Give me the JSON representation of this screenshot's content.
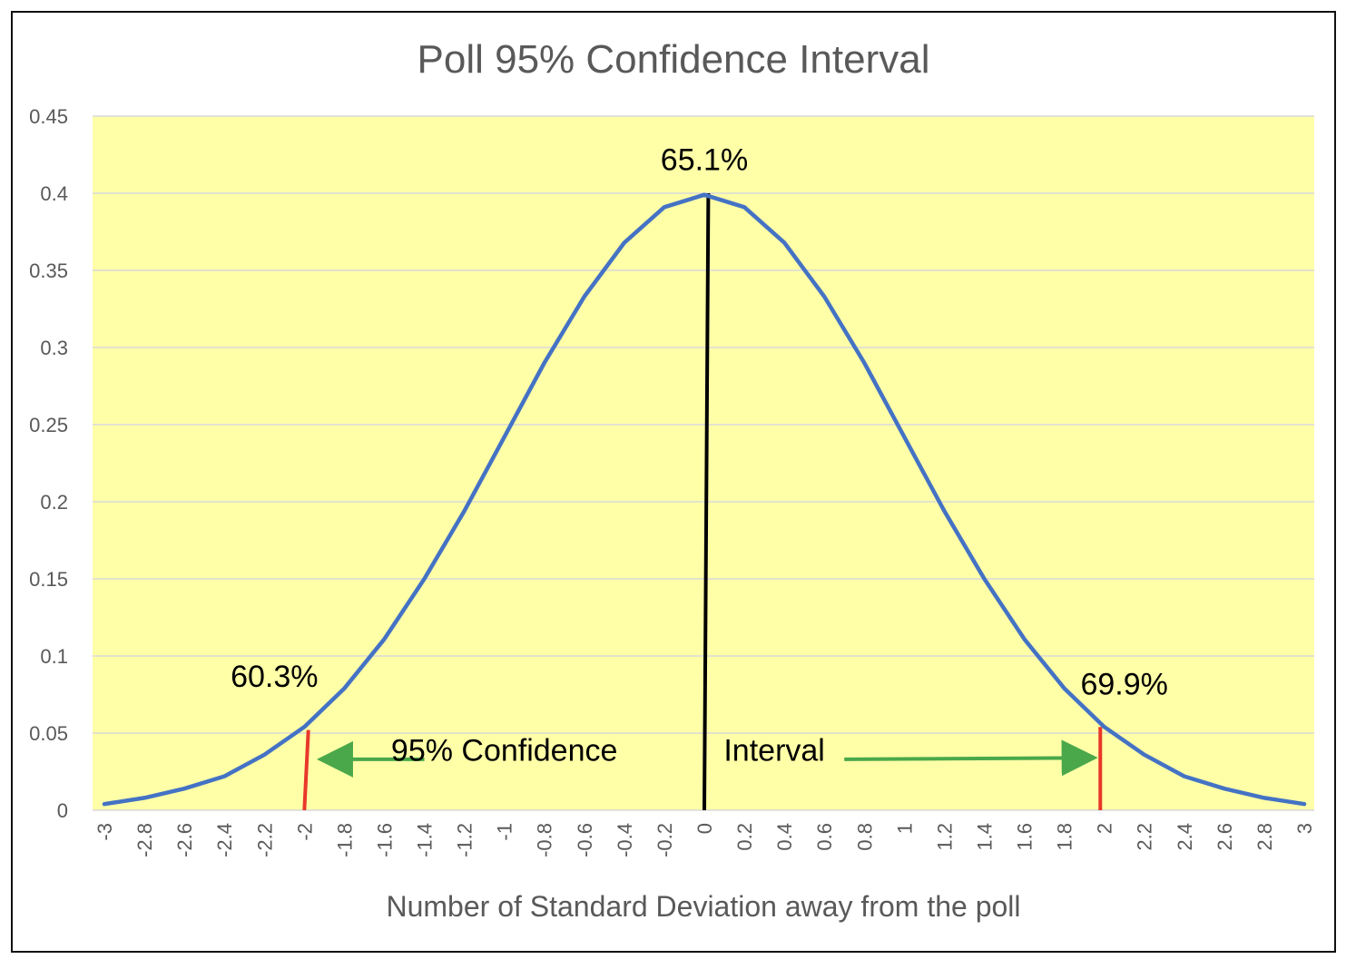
{
  "chart_data": {
    "type": "line",
    "title": "Poll 95% Confidence Interval",
    "xlabel": "Number of Standard Deviation away from the poll",
    "ylabel": "",
    "ylim": [
      0,
      0.45
    ],
    "xlim": [
      -3,
      3
    ],
    "yticks": [
      "0",
      "0.05",
      "0.1",
      "0.15",
      "0.2",
      "0.25",
      "0.3",
      "0.35",
      "0.4",
      "0.45"
    ],
    "xticks": [
      "-3",
      "-2.8",
      "-2.6",
      "-2.4",
      "-2.2",
      "-2",
      "-1.8",
      "-1.6",
      "-1.4",
      "-1.2",
      "-1",
      "-0.8",
      "-0.6",
      "-0.4",
      "-0.2",
      "0",
      "0.2",
      "0.4",
      "0.6",
      "0.8",
      "1",
      "1.2",
      "1.4",
      "1.6",
      "1.8",
      "2",
      "2.2",
      "2.4",
      "2.6",
      "2.8",
      "3"
    ],
    "grid": true,
    "background": "#ffffa8",
    "series": [
      {
        "color": "#4472c4",
        "x": [
          -3,
          -2.8,
          -2.6,
          -2.4,
          -2.2,
          -2,
          -1.8,
          -1.6,
          -1.4,
          -1.2,
          -1,
          -0.8,
          -0.6,
          -0.4,
          -0.2,
          0,
          0.2,
          0.4,
          0.6,
          0.8,
          1,
          1.2,
          1.4,
          1.6,
          1.8,
          2,
          2.2,
          2.4,
          2.6,
          2.8,
          3
        ],
        "y": [
          0.004,
          0.008,
          0.014,
          0.022,
          0.036,
          0.054,
          0.079,
          0.111,
          0.15,
          0.194,
          0.242,
          0.29,
          0.333,
          0.368,
          0.391,
          0.399,
          0.391,
          0.368,
          0.333,
          0.29,
          0.242,
          0.194,
          0.15,
          0.111,
          0.079,
          0.054,
          0.036,
          0.022,
          0.014,
          0.008,
          0.004
        ]
      }
    ],
    "annotations": [
      {
        "text": "65.1%",
        "x": 0,
        "y": 0.415
      },
      {
        "text": "60.3%",
        "x": -2.15,
        "y": 0.08
      },
      {
        "text": "69.9%",
        "x": 2.1,
        "y": 0.075
      },
      {
        "text": "95% Confidence",
        "x": -1.0,
        "y": 0.032
      },
      {
        "text": "Interval",
        "x": 0.35,
        "y": 0.032
      }
    ],
    "markers": [
      {
        "color": "#000000",
        "x": [
          0,
          0.02
        ],
        "y": [
          0,
          0.4
        ]
      },
      {
        "color": "#e8382a",
        "x": [
          -1.98,
          -2.0
        ],
        "y": [
          0.052,
          0
        ]
      },
      {
        "color": "#e8382a",
        "x": [
          1.98,
          1.98
        ],
        "y": [
          0.054,
          0
        ]
      }
    ],
    "arrows": [
      {
        "color": "#4aa84a",
        "from": [
          -1.4,
          0.033
        ],
        "to": [
          -1.92,
          0.033
        ]
      },
      {
        "color": "#4aa84a",
        "from": [
          0.7,
          0.033
        ],
        "to": [
          1.95,
          0.034
        ]
      }
    ]
  }
}
